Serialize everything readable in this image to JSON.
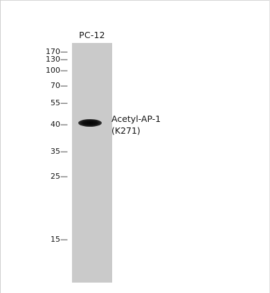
{
  "lane": {
    "label": "PC-12",
    "color": "#cacaca"
  },
  "markers": [
    {
      "label": "170—",
      "kda": 170
    },
    {
      "label": "130—",
      "kda": 130
    },
    {
      "label": "100—",
      "kda": 100
    },
    {
      "label": "70—",
      "kda": 70
    },
    {
      "label": "55—",
      "kda": 55
    },
    {
      "label": "40—",
      "kda": 40
    },
    {
      "label": "35—",
      "kda": 35
    },
    {
      "label": "25—",
      "kda": 25
    },
    {
      "label": "15—",
      "kda": 15
    }
  ],
  "band": {
    "approx_kda": 40,
    "color": "#050505"
  },
  "protein_label": {
    "line1": "Acetyl-AP-1",
    "line2": "(K271)"
  }
}
